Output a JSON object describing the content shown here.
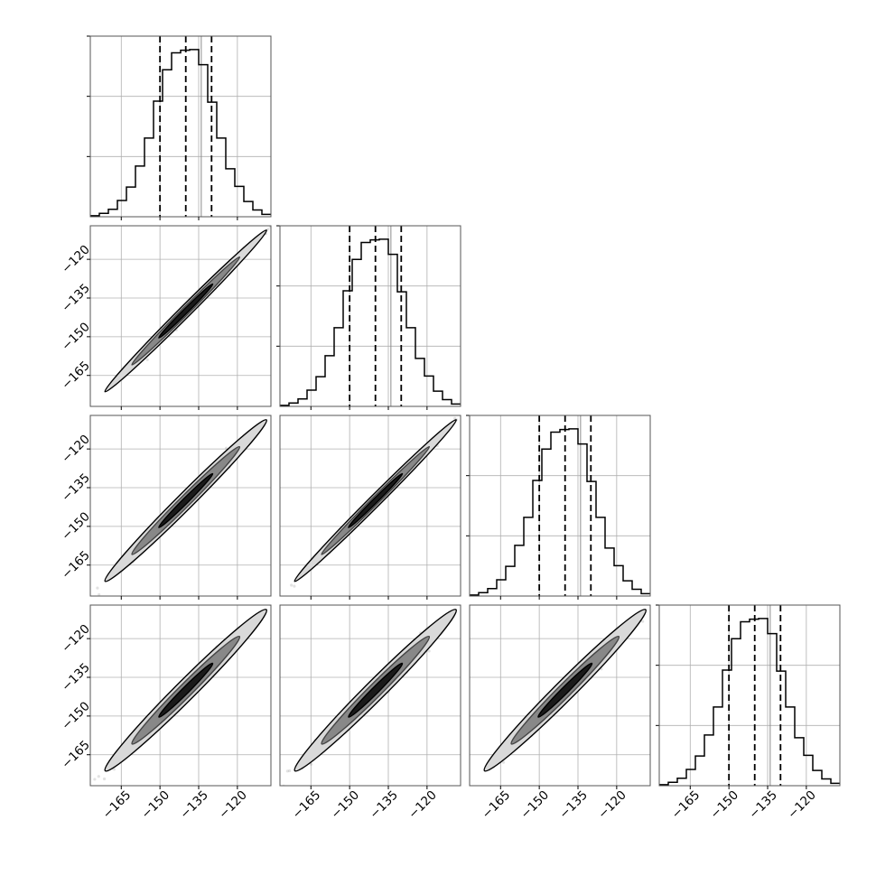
{
  "colors": {
    "background": "#ffffff",
    "frame": "#555555",
    "grid": "#b0b0b0",
    "line": "#000000",
    "contour_fill": "#d9d9d9",
    "scatter": "#7a7a7a"
  },
  "chart_data": {
    "type": "corner",
    "n_params": 4,
    "axis_range": [
      -177,
      -107
    ],
    "tick_values": [
      -165,
      -150,
      -135,
      -120
    ],
    "tick_labels": [
      "−165",
      "−150",
      "−135",
      "−120"
    ],
    "grid": true,
    "histograms": [
      {
        "param": 1,
        "quantiles": [
          -150,
          -140,
          -130
        ],
        "truth": -134,
        "bin_edges": [
          -177,
          -173.5,
          -170,
          -166.5,
          -163,
          -159.5,
          -156,
          -152.5,
          -149,
          -145.5,
          -142,
          -138.5,
          -135,
          -131.5,
          -128,
          -124.5,
          -121,
          -117.5,
          -114,
          -110.5,
          -107
        ],
        "counts": [
          0.3,
          1.0,
          2.2,
          4.8,
          8.8,
          15,
          23.3,
          34.2,
          43.5,
          48.5,
          49.3,
          49.5,
          45.0,
          33.9,
          23.3,
          14.2,
          9.0,
          4.5,
          2.0,
          0.7
        ]
      },
      {
        "param": 2,
        "quantiles": [
          -150,
          -140,
          -130
        ],
        "truth": -134,
        "bin_edges": [
          -177,
          -173.5,
          -170,
          -166.5,
          -163,
          -159.5,
          -156,
          -152.5,
          -149,
          -145.5,
          -142,
          -138.5,
          -135,
          -131.5,
          -128,
          -124.5,
          -121,
          -117.5,
          -114,
          -110.5,
          -107
        ],
        "counts": [
          0.3,
          1.0,
          2.2,
          4.8,
          8.8,
          15,
          23.3,
          34.2,
          43.5,
          48.5,
          49.3,
          49.5,
          45.0,
          33.9,
          23.3,
          14.2,
          9.0,
          4.5,
          2.0,
          0.7
        ]
      },
      {
        "param": 3,
        "quantiles": [
          -150,
          -140,
          -130
        ],
        "truth": -134,
        "bin_edges": [
          -177,
          -173.5,
          -170,
          -166.5,
          -163,
          -159.5,
          -156,
          -152.5,
          -149,
          -145.5,
          -142,
          -138.5,
          -135,
          -131.5,
          -128,
          -124.5,
          -121,
          -117.5,
          -114,
          -110.5,
          -107
        ],
        "counts": [
          0.3,
          1.0,
          2.2,
          4.8,
          8.8,
          15,
          23.3,
          34.2,
          43.5,
          48.5,
          49.3,
          49.5,
          45.0,
          33.9,
          23.3,
          14.2,
          9.0,
          4.5,
          2.0,
          0.7
        ]
      },
      {
        "param": 4,
        "quantiles": [
          -150,
          -140,
          -130
        ],
        "truth": -134,
        "bin_edges": [
          -177,
          -173.5,
          -170,
          -166.5,
          -163,
          -159.5,
          -156,
          -152.5,
          -149,
          -145.5,
          -142,
          -138.5,
          -135,
          -131.5,
          -128,
          -124.5,
          -121,
          -117.5,
          -114,
          -110.5,
          -107
        ],
        "counts": [
          0.3,
          1.0,
          2.2,
          4.8,
          8.8,
          15,
          23.3,
          34.2,
          43.5,
          48.5,
          49.3,
          49.5,
          45.0,
          33.9,
          23.3,
          14.2,
          9.0,
          4.5,
          2.0,
          0.7
        ]
      }
    ],
    "pairs": [
      {
        "row": 2,
        "col": 1,
        "center": [
          -140,
          -140
        ],
        "sigma": 9.5,
        "correlation": 0.995
      },
      {
        "row": 3,
        "col": 1,
        "center": [
          -140,
          -140
        ],
        "sigma": 9.5,
        "correlation": 0.99
      },
      {
        "row": 3,
        "col": 2,
        "center": [
          -140,
          -140
        ],
        "sigma": 9.5,
        "correlation": 0.995
      },
      {
        "row": 4,
        "col": 1,
        "center": [
          -140,
          -140
        ],
        "sigma": 9.5,
        "correlation": 0.985
      },
      {
        "row": 4,
        "col": 2,
        "center": [
          -140,
          -140
        ],
        "sigma": 9.5,
        "correlation": 0.985
      },
      {
        "row": 4,
        "col": 3,
        "center": [
          -140,
          -140
        ],
        "sigma": 9.5,
        "correlation": 0.985
      }
    ],
    "contour_levels_sigma": [
      0.5,
      1.0,
      1.5
    ]
  }
}
